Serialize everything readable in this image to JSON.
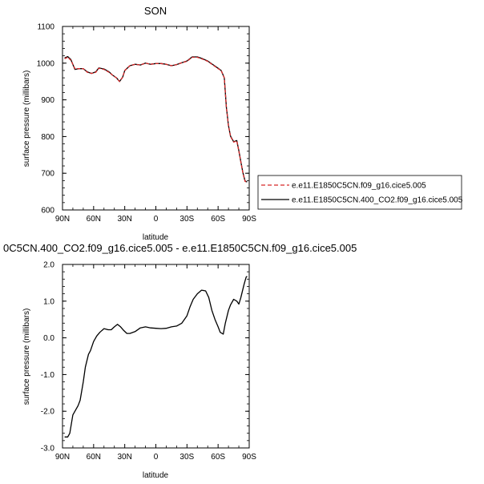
{
  "chart_data": [
    {
      "type": "line",
      "title": "SON",
      "xlabel": "latitude",
      "ylabel": "surface pressure (millibars)",
      "xlim": [
        90,
        -90
      ],
      "ylim": [
        600,
        1100
      ],
      "xticks": [
        90,
        60,
        30,
        0,
        -30,
        -60,
        -90
      ],
      "xtick_labels": [
        "90N",
        "60N",
        "30N",
        "0",
        "30S",
        "60S",
        "90S"
      ],
      "yticks": [
        600,
        700,
        800,
        900,
        1000,
        1100
      ],
      "ytick_labels": [
        "600",
        "700",
        "800",
        "900",
        "1000",
        "1100"
      ],
      "legend_position": "right",
      "series": [
        {
          "name": "e.e11.E1850C5CN.f09_g16.cice5.005",
          "color": "#d62728",
          "dash": "dashed",
          "x": [
            88,
            85,
            82,
            78,
            74,
            70,
            66,
            62,
            58,
            55,
            50,
            45,
            42,
            38,
            35,
            32,
            30,
            25,
            20,
            15,
            10,
            5,
            0,
            -5,
            -10,
            -15,
            -20,
            -25,
            -30,
            -35,
            -40,
            -45,
            -50,
            -55,
            -60,
            -63,
            -66,
            -68,
            -70,
            -72,
            -75,
            -78,
            -80,
            -82,
            -84,
            -86,
            -88
          ],
          "y": [
            1012,
            1016,
            1008,
            985,
            985,
            985,
            975,
            972,
            975,
            986,
            983,
            975,
            968,
            960,
            950,
            962,
            980,
            993,
            997,
            995,
            1000,
            997,
            999,
            999,
            997,
            993,
            996,
            1001,
            1005,
            1016,
            1016,
            1011,
            1005,
            995,
            985,
            980,
            960,
            880,
            830,
            800,
            785,
            788,
            760,
            730,
            700,
            678,
            675
          ]
        },
        {
          "name": "e.e11.E1850C5CN.400_CO2.f09_g16.cice5.005",
          "color": "#000000",
          "dash": "solid",
          "x": [
            88,
            85,
            82,
            78,
            74,
            70,
            66,
            62,
            58,
            55,
            50,
            45,
            42,
            38,
            35,
            32,
            30,
            25,
            20,
            15,
            10,
            5,
            0,
            -5,
            -10,
            -15,
            -20,
            -25,
            -30,
            -35,
            -40,
            -45,
            -50,
            -55,
            -60,
            -63,
            -66,
            -68,
            -70,
            -72,
            -75,
            -78,
            -80,
            -82,
            -84,
            -86,
            -88
          ],
          "y": [
            1014,
            1018,
            1010,
            983,
            985,
            985,
            976,
            972,
            976,
            987,
            984,
            976,
            968,
            960,
            950,
            962,
            980,
            993,
            997,
            995,
            1000,
            997,
            999,
            999,
            997,
            993,
            996,
            1001,
            1006,
            1017,
            1017,
            1012,
            1006,
            996,
            986,
            980,
            960,
            880,
            830,
            801,
            786,
            789,
            761,
            731,
            701,
            679,
            676
          ]
        }
      ]
    },
    {
      "type": "line",
      "title": "0C5CN.400_CO2.f09_g16.cice5.005 - e.e11.E1850C5CN.f09_g16.cice5.005",
      "xlabel": "latitude",
      "ylabel": "surface pressure (millibars)",
      "xlim": [
        90,
        -90
      ],
      "ylim": [
        -3.0,
        2.0
      ],
      "xticks": [
        90,
        60,
        30,
        0,
        -30,
        -60,
        -90
      ],
      "xtick_labels": [
        "90N",
        "60N",
        "30N",
        "0",
        "30S",
        "60S",
        "90S"
      ],
      "yticks": [
        -3.0,
        -2.0,
        -1.0,
        0.0,
        1.0,
        2.0
      ],
      "ytick_labels": [
        "-3.0",
        "-2.0",
        "-1.0",
        "0.0",
        "1.0",
        "2.0"
      ],
      "series": [
        {
          "color": "#000000",
          "x": [
            88,
            85,
            83,
            80,
            78,
            75,
            73,
            70,
            68,
            65,
            63,
            60,
            57,
            54,
            50,
            46,
            43,
            40,
            37,
            34,
            31,
            28,
            25,
            20,
            15,
            10,
            5,
            0,
            -5,
            -10,
            -15,
            -20,
            -25,
            -30,
            -33,
            -36,
            -40,
            -44,
            -48,
            -51,
            -54,
            -57,
            -60,
            -62,
            -65,
            -67,
            -70,
            -72,
            -75,
            -78,
            -80,
            -82,
            -85,
            -87,
            -88
          ],
          "y": [
            -2.7,
            -2.7,
            -2.6,
            -2.1,
            -2.0,
            -1.85,
            -1.7,
            -1.2,
            -0.8,
            -0.45,
            -0.35,
            -0.1,
            0.05,
            0.15,
            0.25,
            0.22,
            0.22,
            0.3,
            0.37,
            0.3,
            0.2,
            0.12,
            0.12,
            0.17,
            0.27,
            0.3,
            0.27,
            0.26,
            0.25,
            0.26,
            0.3,
            0.32,
            0.4,
            0.6,
            0.85,
            1.05,
            1.2,
            1.3,
            1.28,
            1.1,
            0.75,
            0.5,
            0.3,
            0.15,
            0.1,
            0.4,
            0.75,
            0.9,
            1.05,
            1.0,
            0.92,
            1.1,
            1.45,
            1.65,
            1.68
          ]
        }
      ]
    }
  ]
}
